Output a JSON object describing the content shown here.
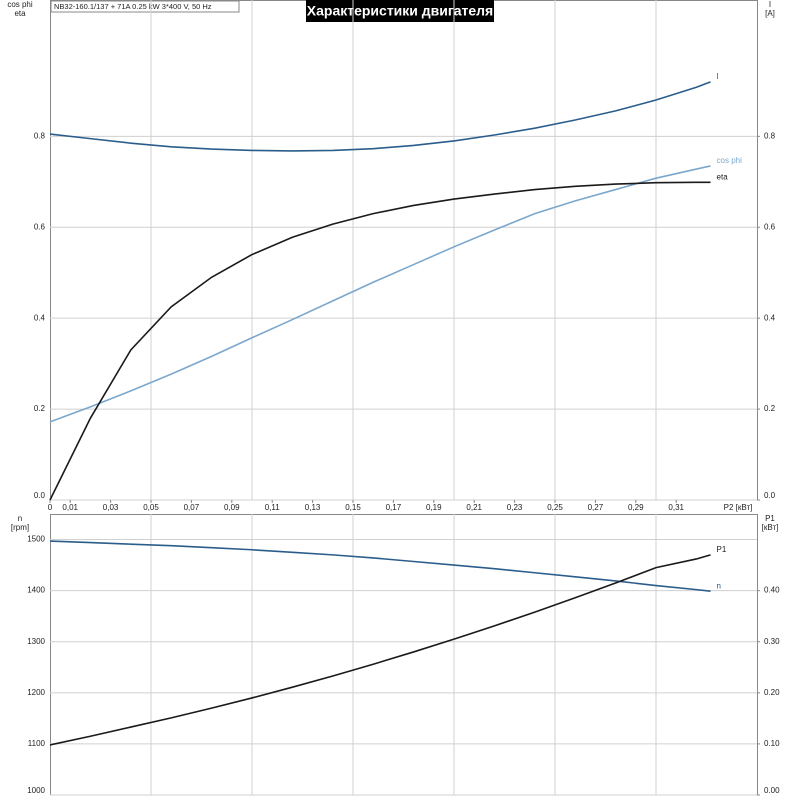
{
  "chart_data": [
    {
      "type": "line",
      "title": "Характеристики двигателя",
      "subtitle": "NB32-160.1/137 + 71A   0.25 kW   3*400 V, 50 Hz",
      "xlabel": "P2 [кВт]",
      "ylabel": [
        "cos phi",
        "eta"
      ],
      "y2label": [
        "I",
        "[A]"
      ],
      "x": [
        0,
        0.02,
        0.04,
        0.06,
        0.08,
        0.1,
        0.12,
        0.14,
        0.16,
        0.18,
        0.2,
        0.22,
        0.24,
        0.26,
        0.28,
        0.3,
        0.32,
        0.327
      ],
      "xlim": [
        0,
        0.35
      ],
      "xticks": [
        0,
        {
          "value": 0.01,
          "label": "0,01"
        },
        {
          "value": 0.03,
          "label": "0,03"
        },
        {
          "value": 0.05,
          "label": "0,05"
        },
        {
          "value": 0.07,
          "label": "0,07"
        },
        {
          "value": 0.09,
          "label": "0,09"
        },
        {
          "value": 0.11,
          "label": "0,11"
        },
        {
          "value": 0.13,
          "label": "0,13"
        },
        {
          "value": 0.15,
          "label": "0,15"
        },
        {
          "value": 0.17,
          "label": "0,17"
        },
        {
          "value": 0.19,
          "label": "0,19"
        },
        {
          "value": 0.21,
          "label": "0,21"
        },
        {
          "value": 0.23,
          "label": "0,23"
        },
        {
          "value": 0.25,
          "label": "0,25"
        },
        {
          "value": 0.27,
          "label": "0,27"
        },
        {
          "value": 0.29,
          "label": "0,29"
        },
        {
          "value": 0.31,
          "label": "0,31"
        }
      ],
      "xgrid": [
        0.05,
        0.1,
        0.15,
        0.2,
        0.25,
        0.3
      ],
      "ylim": [
        0,
        1.1
      ],
      "yticks": [
        {
          "value": 0,
          "label": "0.0"
        },
        0.2,
        0.4,
        0.6,
        0.8
      ],
      "y2lim": [
        0,
        1.1
      ],
      "y2ticks": [
        {
          "value": 0,
          "label": "0.0"
        },
        0.2,
        0.4,
        0.6,
        0.8
      ],
      "grid": true,
      "series": [
        {
          "name": "I",
          "color": "#2b5d8c",
          "axis": "y2",
          "values": [
            0.805,
            0.795,
            0.785,
            0.777,
            0.772,
            0.769,
            0.768,
            0.769,
            0.773,
            0.78,
            0.79,
            0.803,
            0.818,
            0.836,
            0.856,
            0.88,
            0.908,
            0.92
          ]
        },
        {
          "name": "cos phi",
          "color": "#7ba7cc",
          "values": [
            0.172,
            0.205,
            0.24,
            0.277,
            0.316,
            0.357,
            0.397,
            0.438,
            0.479,
            0.518,
            0.557,
            0.594,
            0.63,
            0.658,
            0.683,
            0.708,
            0.728,
            0.735
          ]
        },
        {
          "name": "eta",
          "color": "#1a1a1a",
          "values": [
            0,
            0.18,
            0.33,
            0.425,
            0.49,
            0.54,
            0.578,
            0.607,
            0.63,
            0.648,
            0.662,
            0.673,
            0.683,
            0.69,
            0.695,
            0.698,
            0.699,
            0.699
          ]
        }
      ]
    },
    {
      "type": "line",
      "ylabel": [
        "n",
        "[rpm]"
      ],
      "y2label": [
        "P1",
        "[кВт]"
      ],
      "x": [
        0,
        0.02,
        0.04,
        0.06,
        0.08,
        0.1,
        0.12,
        0.14,
        0.16,
        0.18,
        0.2,
        0.22,
        0.24,
        0.26,
        0.28,
        0.3,
        0.32,
        0.327
      ],
      "xlim": [
        0,
        0.35
      ],
      "xgrid": [
        0.05,
        0.1,
        0.15,
        0.2,
        0.25,
        0.3
      ],
      "ylim": [
        1000,
        1550
      ],
      "yticks": [
        1000,
        1100,
        1200,
        1300,
        1400,
        1500
      ],
      "y2lim": [
        0,
        0.55
      ],
      "y2ticks": [
        {
          "value": 0,
          "label": "0.00"
        },
        {
          "value": 0.1,
          "label": "0.10"
        },
        {
          "value": 0.2,
          "label": "0.20"
        },
        {
          "value": 0.3,
          "label": "0.30"
        },
        {
          "value": 0.4,
          "label": "0.40"
        }
      ],
      "grid": true,
      "series": [
        {
          "name": "n",
          "color": "#2b5d8c",
          "values": [
            1497,
            1494,
            1491,
            1488,
            1484,
            1480,
            1475,
            1470,
            1464,
            1457,
            1450,
            1443,
            1435,
            1427,
            1419,
            1410,
            1402,
            1399
          ]
        },
        {
          "name": "P1",
          "color": "#1a1a1a",
          "axis": "y2",
          "values": [
            0.098,
            0.115,
            0.133,
            0.151,
            0.17,
            0.19,
            0.211,
            0.233,
            0.256,
            0.28,
            0.305,
            0.331,
            0.358,
            0.386,
            0.415,
            0.445,
            0.462,
            0.47
          ]
        }
      ]
    }
  ]
}
